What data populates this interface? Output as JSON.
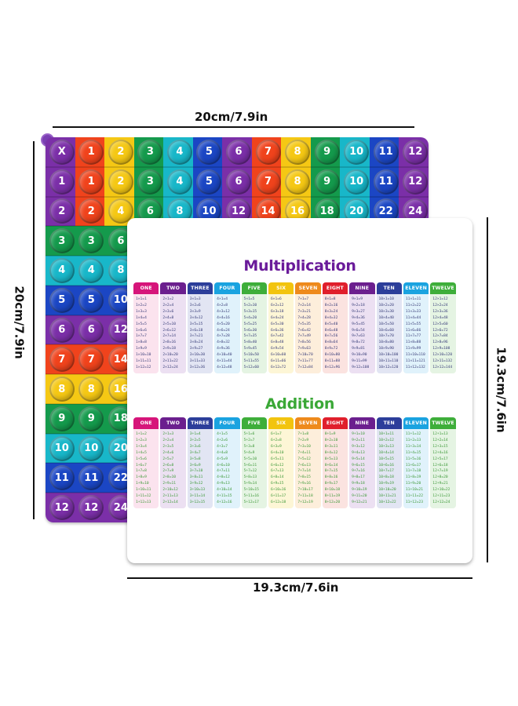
{
  "dimensions": {
    "top_label": "20cm/7.9in",
    "left_label": "20cm/7.9in",
    "right_label": "19.3cm/7.6in",
    "bottom_label": "19.3cm/7.6in"
  },
  "board": {
    "column_colors": [
      "#7b2fa8",
      "#f0431c",
      "#f5c814",
      "#149a4c",
      "#18b7c9",
      "#1b46c4",
      "#7b2fa8",
      "#f0431c",
      "#f5c814",
      "#149a4c",
      "#18b7c9",
      "#1b46c4",
      "#7b2fa8"
    ],
    "row_colors": [
      "#7b2fa8",
      "#f0431c",
      "#f5c814",
      "#149a4c",
      "#18b7c9",
      "#1b46c4",
      "#7b2fa8",
      "#f0431c",
      "#f5c814",
      "#149a4c",
      "#18b7c9",
      "#1b46c4",
      "#7b2fa8"
    ],
    "rows": [
      [
        "X",
        "1",
        "2",
        "3",
        "4",
        "5",
        "6",
        "7",
        "8",
        "9",
        "10",
        "11",
        "12"
      ],
      [
        "1",
        "1",
        "2",
        "3",
        "4",
        "5",
        "6",
        "7",
        "8",
        "9",
        "10",
        "11",
        "12"
      ],
      [
        "2",
        "2",
        "4",
        "6",
        "8",
        "10",
        "12",
        "14",
        "16",
        "18",
        "20",
        "22",
        "24"
      ],
      [
        "3",
        "3",
        "6"
      ],
      [
        "4",
        "4",
        "8"
      ],
      [
        "5",
        "5",
        "10"
      ],
      [
        "6",
        "6",
        "12"
      ],
      [
        "7",
        "7",
        "14"
      ],
      [
        "8",
        "8",
        "16"
      ],
      [
        "9",
        "9",
        "18"
      ],
      [
        "10",
        "10",
        "20"
      ],
      [
        "11",
        "11",
        "22"
      ],
      [
        "12",
        "12",
        "24"
      ]
    ]
  },
  "card": {
    "multiplication": {
      "title": "Multiplication",
      "title_color": "#6a1b9a",
      "columns": [
        {
          "head": "ONE",
          "color": "#d6157a",
          "bg": "#fbe3ee",
          "facts": [
            "1×1=1",
            "1×2=2",
            "1×3=3",
            "1×4=4",
            "1×5=5",
            "1×6=6",
            "1×7=7",
            "1×8=8",
            "1×9=9",
            "1×10=10",
            "1×11=11",
            "1×12=12"
          ]
        },
        {
          "head": "TWO",
          "color": "#6b1f8e",
          "bg": "#ece0f2",
          "facts": [
            "2×1=2",
            "2×2=4",
            "2×3=6",
            "2×4=8",
            "2×5=10",
            "2×6=12",
            "2×7=14",
            "2×8=16",
            "2×9=18",
            "2×10=20",
            "2×11=22",
            "2×12=24"
          ]
        },
        {
          "head": "THREE",
          "color": "#2c3e9a",
          "bg": "#e2e5f3",
          "facts": [
            "3×1=3",
            "3×2=6",
            "3×3=9",
            "3×4=12",
            "3×5=15",
            "3×6=18",
            "3×7=21",
            "3×8=24",
            "3×9=27",
            "3×10=30",
            "3×11=33",
            "3×12=36"
          ]
        },
        {
          "head": "FOUR",
          "color": "#1aa3e0",
          "bg": "#e0f2fb",
          "facts": [
            "4×1=4",
            "4×2=8",
            "4×3=12",
            "4×4=16",
            "4×5=20",
            "4×6=24",
            "4×7=28",
            "4×8=32",
            "4×9=36",
            "4×10=40",
            "4×11=44",
            "4×12=48"
          ]
        },
        {
          "head": "FIVE",
          "color": "#3eae3a",
          "bg": "#e5f4e3",
          "facts": [
            "5×1=5",
            "5×2=10",
            "5×3=15",
            "5×4=20",
            "5×5=25",
            "5×6=30",
            "5×7=35",
            "5×8=40",
            "5×9=45",
            "5×10=50",
            "5×11=55",
            "5×12=60"
          ]
        },
        {
          "head": "SIX",
          "color": "#f2c40f",
          "bg": "#fdf6d6",
          "facts": [
            "6×1=6",
            "6×2=12",
            "6×3=18",
            "6×4=24",
            "6×5=30",
            "6×6=36",
            "6×7=42",
            "6×8=48",
            "6×9=54",
            "6×10=60",
            "6×11=66",
            "6×12=72"
          ]
        },
        {
          "head": "SEVEN",
          "color": "#ee8a1c",
          "bg": "#fdeedb",
          "facts": [
            "7×1=7",
            "7×2=14",
            "7×3=21",
            "7×4=28",
            "7×5=35",
            "7×6=42",
            "7×7=49",
            "7×8=56",
            "7×9=63",
            "7×10=70",
            "7×11=77",
            "7×12=84"
          ]
        },
        {
          "head": "EIGHT",
          "color": "#e01f2c",
          "bg": "#fbe3e0",
          "facts": [
            "8×1=8",
            "8×2=16",
            "8×3=24",
            "8×4=32",
            "8×5=40",
            "8×6=48",
            "8×7=56",
            "8×8=64",
            "8×9=72",
            "8×10=80",
            "8×11=88",
            "8×12=96"
          ]
        },
        {
          "head": "NINE",
          "color": "#6b1f8e",
          "bg": "#ece0f2",
          "facts": [
            "9×1=9",
            "9×2=18",
            "9×3=27",
            "9×4=36",
            "9×5=45",
            "9×6=54",
            "9×7=63",
            "9×8=72",
            "9×9=81",
            "9×10=90",
            "9×11=99",
            "9×12=108"
          ]
        },
        {
          "head": "TEN",
          "color": "#2c3e9a",
          "bg": "#e2e5f3",
          "facts": [
            "10×1=10",
            "10×2=20",
            "10×3=30",
            "10×4=40",
            "10×5=50",
            "10×6=60",
            "10×7=70",
            "10×8=80",
            "10×9=90",
            "10×10=100",
            "10×11=110",
            "10×12=120"
          ]
        },
        {
          "head": "ELEVEN",
          "color": "#1aa3e0",
          "bg": "#e0f2fb",
          "facts": [
            "11×1=11",
            "11×2=22",
            "11×3=33",
            "11×4=44",
            "11×5=55",
            "11×6=66",
            "11×7=77",
            "11×8=88",
            "11×9=99",
            "11×10=110",
            "11×11=121",
            "11×12=132"
          ]
        },
        {
          "head": "TWELVE",
          "color": "#3eae3a",
          "bg": "#e5f4e3",
          "facts": [
            "12×1=12",
            "12×2=24",
            "12×3=36",
            "12×4=48",
            "12×5=60",
            "12×6=72",
            "12×7=84",
            "12×8=96",
            "12×9=108",
            "12×10=120",
            "12×11=132",
            "12×12=144"
          ]
        }
      ],
      "fact_color": "#3a3f7a"
    },
    "addition": {
      "title": "Addition",
      "title_color": "#3aa836",
      "columns": [
        {
          "head": "ONE",
          "color": "#d6157a",
          "bg": "#fbe3ee",
          "facts": [
            "1+1=2",
            "1+2=3",
            "1+3=4",
            "1+4=5",
            "1+5=6",
            "1+6=7",
            "1+7=8",
            "1+8=9",
            "1+9=10",
            "1+10=11",
            "1+11=12",
            "1+12=13"
          ]
        },
        {
          "head": "TWO",
          "color": "#6b1f8e",
          "bg": "#ece0f2",
          "facts": [
            "2+1=3",
            "2+2=4",
            "2+3=5",
            "2+4=6",
            "2+5=7",
            "2+6=8",
            "2+7=9",
            "2+8=10",
            "2+9=11",
            "2+10=12",
            "2+11=13",
            "2+12=14"
          ]
        },
        {
          "head": "THREE",
          "color": "#2c3e9a",
          "bg": "#e2e5f3",
          "facts": [
            "3+1=4",
            "3+2=5",
            "3+3=6",
            "3+4=7",
            "3+5=8",
            "3+6=9",
            "3+7=10",
            "3+8=11",
            "3+9=12",
            "3+10=13",
            "3+11=14",
            "3+12=15"
          ]
        },
        {
          "head": "FOUR",
          "color": "#1aa3e0",
          "bg": "#e0f2fb",
          "facts": [
            "4+1=5",
            "4+2=6",
            "4+3=7",
            "4+4=8",
            "4+5=9",
            "4+6=10",
            "4+7=11",
            "4+8=12",
            "4+9=13",
            "4+10=14",
            "4+11=15",
            "4+12=16"
          ]
        },
        {
          "head": "FIVE",
          "color": "#3eae3a",
          "bg": "#e5f4e3",
          "facts": [
            "5+1=6",
            "5+2=7",
            "5+3=8",
            "5+4=9",
            "5+5=10",
            "5+6=11",
            "5+7=12",
            "5+8=13",
            "5+9=14",
            "5+10=15",
            "5+11=16",
            "5+12=17"
          ]
        },
        {
          "head": "SIX",
          "color": "#f2c40f",
          "bg": "#fdf6d6",
          "facts": [
            "6+1=7",
            "6+2=8",
            "6+3=9",
            "6+4=10",
            "6+5=11",
            "6+6=12",
            "6+7=13",
            "6+8=14",
            "6+9=15",
            "6+10=16",
            "6+11=17",
            "6+12=18"
          ]
        },
        {
          "head": "SEVEN",
          "color": "#ee8a1c",
          "bg": "#fdeedb",
          "facts": [
            "7+1=8",
            "7+2=9",
            "7+3=10",
            "7+4=11",
            "7+5=12",
            "7+6=13",
            "7+7=14",
            "7+8=15",
            "7+9=16",
            "7+10=17",
            "7+11=18",
            "7+12=19"
          ]
        },
        {
          "head": "EIGHT",
          "color": "#e01f2c",
          "bg": "#fbe3e0",
          "facts": [
            "8+1=9",
            "8+2=10",
            "8+3=11",
            "8+4=12",
            "8+5=13",
            "8+6=14",
            "8+7=15",
            "8+8=16",
            "8+9=17",
            "8+10=18",
            "8+11=19",
            "8+12=20"
          ]
        },
        {
          "head": "NINE",
          "color": "#6b1f8e",
          "bg": "#ece0f2",
          "facts": [
            "9+1=10",
            "9+2=11",
            "9+3=12",
            "9+4=13",
            "9+5=14",
            "9+6=15",
            "9+7=16",
            "9+8=17",
            "9+9=18",
            "9+10=19",
            "9+11=20",
            "9+12=21"
          ]
        },
        {
          "head": "TEN",
          "color": "#2c3e9a",
          "bg": "#e2e5f3",
          "facts": [
            "10+1=11",
            "10+2=12",
            "10+3=13",
            "10+4=14",
            "10+5=15",
            "10+6=16",
            "10+7=17",
            "10+8=18",
            "10+9=19",
            "10+10=20",
            "10+11=21",
            "10+12=22"
          ]
        },
        {
          "head": "ELEVEN",
          "color": "#1aa3e0",
          "bg": "#e0f2fb",
          "facts": [
            "11+1=12",
            "11+2=13",
            "11+3=14",
            "11+4=15",
            "11+5=16",
            "11+6=17",
            "11+7=18",
            "11+8=19",
            "11+9=20",
            "11+10=21",
            "11+11=22",
            "11+12=23"
          ]
        },
        {
          "head": "TWELVE",
          "color": "#3eae3a",
          "bg": "#e5f4e3",
          "facts": [
            "12+1=13",
            "12+2=14",
            "12+3=15",
            "12+4=16",
            "12+5=17",
            "12+6=18",
            "12+7=19",
            "12+8=20",
            "12+9=21",
            "12+10=22",
            "12+11=23",
            "12+12=24"
          ]
        }
      ],
      "fact_color": "#3f9a3a"
    }
  }
}
